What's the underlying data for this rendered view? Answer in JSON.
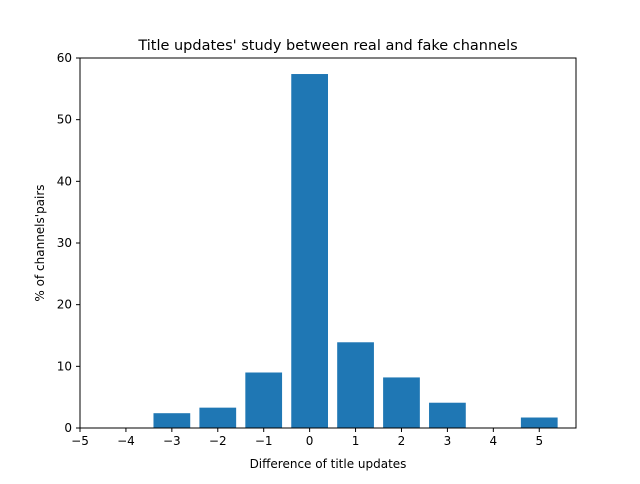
{
  "chart_data": {
    "type": "bar",
    "title": "Title updates' study between real and fake channels",
    "xlabel": "Difference of title updates",
    "ylabel": "% of channels'pairs",
    "x": [
      -3,
      -2,
      -1,
      0,
      1,
      2,
      3,
      5
    ],
    "values": [
      2.4,
      3.3,
      9.0,
      57.4,
      13.9,
      8.2,
      4.1,
      1.7
    ],
    "xlim": [
      -5,
      5.8
    ],
    "ylim": [
      0,
      60
    ],
    "xticks": [
      -5,
      -4,
      -3,
      -2,
      -1,
      0,
      1,
      2,
      3,
      4,
      5
    ],
    "xtick_labels": [
      "−5",
      "−4",
      "−3",
      "−2",
      "−1",
      "0",
      "1",
      "2",
      "3",
      "4",
      "5"
    ],
    "yticks": [
      0,
      10,
      20,
      30,
      40,
      50,
      60
    ],
    "ytick_labels": [
      "0",
      "10",
      "20",
      "30",
      "40",
      "50",
      "60"
    ],
    "bar_color": "#1f77b4",
    "grid": false,
    "legend": "none"
  }
}
